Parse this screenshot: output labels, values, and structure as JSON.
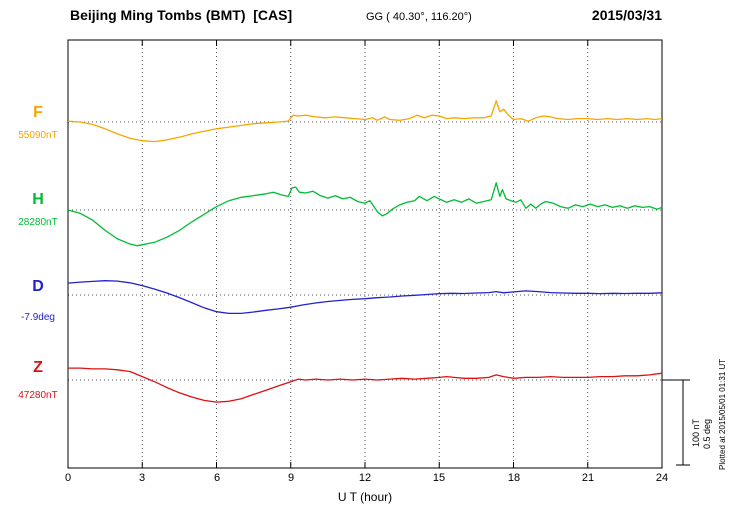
{
  "header": {
    "station": "Beijing Ming Tombs (BMT)  [CAS]",
    "coordinates": "GG ( 40.30°, 116.20°)",
    "date": "2015/03/31"
  },
  "axis": {
    "ticks": [
      "0",
      "3",
      "6",
      "9",
      "12",
      "15",
      "18",
      "21",
      "24"
    ],
    "xlabel": "U T (hour)"
  },
  "scale_bar": {
    "label_nt": "100 nT",
    "label_deg": "0.5 deg"
  },
  "footer_note": "Plotted at 2015/05/01 01:31 UT",
  "channels": [
    {
      "label": "F",
      "baseline_label": "55090nT",
      "color": "#F7A600",
      "unit": "nT"
    },
    {
      "label": "H",
      "baseline_label": "28280nT",
      "color": "#00BB33",
      "unit": "nT"
    },
    {
      "label": "D",
      "baseline_label": "-7.9deg",
      "color": "#2222CC",
      "unit": "deg"
    },
    {
      "label": "Z",
      "baseline_label": "47280nT",
      "color": "#DD1111",
      "unit": "nT"
    }
  ],
  "chart_data": {
    "type": "line",
    "title": "Beijing Ming Tombs (BMT) [CAS] magnetogram 2015/03/31",
    "xlabel": "U T (hour)",
    "x_range": [
      0,
      24
    ],
    "x_ticks": [
      0,
      3,
      6,
      9,
      12,
      15,
      18,
      21,
      24
    ],
    "grid": "dotted vertical lines every 3 h; dotted horizontal baseline per channel",
    "legend_position": "left margin channel labels",
    "scale": {
      "bar_nT": 100,
      "bar_deg": 0.5
    },
    "values_are": "offset from channel baseline (nT, or deg for D)",
    "series": [
      {
        "name": "F",
        "baseline": 55090,
        "unit": "nT",
        "color": "#F7A600",
        "points": [
          [
            0,
            1
          ],
          [
            0.5,
            0
          ],
          [
            1,
            -3
          ],
          [
            1.5,
            -8
          ],
          [
            2,
            -14
          ],
          [
            2.5,
            -19
          ],
          [
            3,
            -22
          ],
          [
            3.5,
            -23
          ],
          [
            4,
            -21
          ],
          [
            4.5,
            -18
          ],
          [
            5,
            -14
          ],
          [
            5.5,
            -11
          ],
          [
            6,
            -8
          ],
          [
            6.5,
            -6
          ],
          [
            7,
            -4
          ],
          [
            7.5,
            -2
          ],
          [
            8,
            -1
          ],
          [
            8.5,
            0
          ],
          [
            8.9,
            1
          ],
          [
            9.1,
            8
          ],
          [
            9.3,
            7
          ],
          [
            9.6,
            8
          ],
          [
            10,
            6
          ],
          [
            10.4,
            5
          ],
          [
            10.8,
            6
          ],
          [
            11.2,
            5
          ],
          [
            11.6,
            4
          ],
          [
            12,
            3
          ],
          [
            12.3,
            5
          ],
          [
            12.5,
            2
          ],
          [
            12.8,
            6
          ],
          [
            13,
            3
          ],
          [
            13.4,
            2
          ],
          [
            13.8,
            4
          ],
          [
            14.1,
            8
          ],
          [
            14.4,
            5
          ],
          [
            14.7,
            8
          ],
          [
            15,
            7
          ],
          [
            15.3,
            4
          ],
          [
            15.6,
            5
          ],
          [
            16,
            4
          ],
          [
            16.4,
            5
          ],
          [
            16.8,
            5
          ],
          [
            17.1,
            7
          ],
          [
            17.3,
            25
          ],
          [
            17.45,
            12
          ],
          [
            17.6,
            15
          ],
          [
            17.8,
            8
          ],
          [
            18,
            3
          ],
          [
            18.3,
            4
          ],
          [
            18.6,
            1
          ],
          [
            18.9,
            5
          ],
          [
            19.2,
            7
          ],
          [
            19.5,
            6
          ],
          [
            19.8,
            4
          ],
          [
            20.2,
            3
          ],
          [
            20.6,
            4
          ],
          [
            21,
            4
          ],
          [
            21.4,
            3
          ],
          [
            21.8,
            4
          ],
          [
            22.2,
            3
          ],
          [
            22.6,
            4
          ],
          [
            23,
            3
          ],
          [
            23.4,
            4
          ],
          [
            23.7,
            3
          ],
          [
            24,
            4
          ]
        ]
      },
      {
        "name": "H",
        "baseline": 28280,
        "unit": "nT",
        "color": "#00BB33",
        "points": [
          [
            0,
            0
          ],
          [
            0.5,
            -4
          ],
          [
            1,
            -12
          ],
          [
            1.5,
            -24
          ],
          [
            2,
            -34
          ],
          [
            2.5,
            -40
          ],
          [
            2.8,
            -42
          ],
          [
            3,
            -41
          ],
          [
            3.5,
            -38
          ],
          [
            4,
            -32
          ],
          [
            4.5,
            -24
          ],
          [
            5,
            -14
          ],
          [
            5.5,
            -5
          ],
          [
            6,
            4
          ],
          [
            6.5,
            11
          ],
          [
            7,
            15
          ],
          [
            7.5,
            17
          ],
          [
            8,
            19
          ],
          [
            8.3,
            21
          ],
          [
            8.6,
            18
          ],
          [
            8.9,
            16
          ],
          [
            9.05,
            26
          ],
          [
            9.2,
            27
          ],
          [
            9.35,
            21
          ],
          [
            9.6,
            20
          ],
          [
            9.9,
            22
          ],
          [
            10.2,
            17
          ],
          [
            10.5,
            14
          ],
          [
            10.8,
            17
          ],
          [
            11.1,
            13
          ],
          [
            11.4,
            15
          ],
          [
            11.7,
            10
          ],
          [
            12,
            8
          ],
          [
            12.2,
            11
          ],
          [
            12.5,
            -2
          ],
          [
            12.7,
            -7
          ],
          [
            12.9,
            -4
          ],
          [
            13.1,
            1
          ],
          [
            13.4,
            6
          ],
          [
            13.7,
            9
          ],
          [
            14,
            11
          ],
          [
            14.2,
            16
          ],
          [
            14.5,
            11
          ],
          [
            14.8,
            16
          ],
          [
            15,
            13
          ],
          [
            15.3,
            9
          ],
          [
            15.6,
            12
          ],
          [
            15.9,
            9
          ],
          [
            16.2,
            13
          ],
          [
            16.5,
            8
          ],
          [
            16.8,
            10
          ],
          [
            17.1,
            12
          ],
          [
            17.3,
            32
          ],
          [
            17.45,
            16
          ],
          [
            17.55,
            24
          ],
          [
            17.7,
            13
          ],
          [
            17.9,
            11
          ],
          [
            18.1,
            9
          ],
          [
            18.3,
            12
          ],
          [
            18.5,
            2
          ],
          [
            18.7,
            7
          ],
          [
            18.9,
            2
          ],
          [
            19.1,
            7
          ],
          [
            19.3,
            10
          ],
          [
            19.6,
            8
          ],
          [
            19.9,
            4
          ],
          [
            20.2,
            2
          ],
          [
            20.5,
            6
          ],
          [
            20.8,
            4
          ],
          [
            21.1,
            7
          ],
          [
            21.4,
            4
          ],
          [
            21.7,
            6
          ],
          [
            22,
            3
          ],
          [
            22.3,
            5
          ],
          [
            22.6,
            2
          ],
          [
            22.9,
            5
          ],
          [
            23.2,
            3
          ],
          [
            23.5,
            4
          ],
          [
            23.8,
            1
          ],
          [
            24,
            3
          ]
        ]
      },
      {
        "name": "D",
        "baseline": -7.9,
        "unit": "deg",
        "color": "#2222CC",
        "points": [
          [
            0,
            0.07
          ],
          [
            0.5,
            0.076
          ],
          [
            1,
            0.08
          ],
          [
            1.5,
            0.084
          ],
          [
            2,
            0.082
          ],
          [
            2.5,
            0.072
          ],
          [
            3,
            0.055
          ],
          [
            3.5,
            0.035
          ],
          [
            4,
            0.012
          ],
          [
            4.5,
            -0.015
          ],
          [
            5,
            -0.045
          ],
          [
            5.5,
            -0.075
          ],
          [
            6,
            -0.098
          ],
          [
            6.5,
            -0.108
          ],
          [
            7,
            -0.108
          ],
          [
            7.5,
            -0.1
          ],
          [
            8,
            -0.09
          ],
          [
            8.5,
            -0.082
          ],
          [
            9,
            -0.072
          ],
          [
            9.5,
            -0.058
          ],
          [
            10,
            -0.047
          ],
          [
            10.5,
            -0.038
          ],
          [
            11,
            -0.032
          ],
          [
            11.5,
            -0.026
          ],
          [
            12,
            -0.022
          ],
          [
            12.5,
            -0.016
          ],
          [
            13,
            -0.012
          ],
          [
            13.5,
            -0.006
          ],
          [
            14,
            -0.002
          ],
          [
            14.5,
            0.003
          ],
          [
            15,
            0.008
          ],
          [
            15.5,
            0.01
          ],
          [
            16,
            0.009
          ],
          [
            16.5,
            0.012
          ],
          [
            17,
            0.014
          ],
          [
            17.3,
            0.02
          ],
          [
            17.6,
            0.013
          ],
          [
            18,
            0.018
          ],
          [
            18.5,
            0.024
          ],
          [
            19,
            0.02
          ],
          [
            19.5,
            0.014
          ],
          [
            20,
            0.012
          ],
          [
            20.5,
            0.01
          ],
          [
            21,
            0.01
          ],
          [
            21.5,
            0.008
          ],
          [
            22,
            0.01
          ],
          [
            22.5,
            0.009
          ],
          [
            23,
            0.01
          ],
          [
            23.5,
            0.01
          ],
          [
            24,
            0.013
          ]
        ]
      },
      {
        "name": "Z",
        "baseline": 47280,
        "unit": "nT",
        "color": "#DD1111",
        "points": [
          [
            0,
            14
          ],
          [
            0.5,
            14
          ],
          [
            1,
            13
          ],
          [
            1.5,
            13
          ],
          [
            2,
            12
          ],
          [
            2.5,
            10
          ],
          [
            3,
            4
          ],
          [
            3.5,
            -2
          ],
          [
            4,
            -9
          ],
          [
            4.5,
            -15
          ],
          [
            5,
            -20
          ],
          [
            5.5,
            -24
          ],
          [
            6,
            -26
          ],
          [
            6.5,
            -25
          ],
          [
            7,
            -22
          ],
          [
            7.5,
            -17
          ],
          [
            8,
            -12
          ],
          [
            8.5,
            -7
          ],
          [
            9,
            -2
          ],
          [
            9.3,
            1
          ],
          [
            9.6,
            0
          ],
          [
            10,
            1
          ],
          [
            10.5,
            0
          ],
          [
            11,
            1
          ],
          [
            11.5,
            0
          ],
          [
            12,
            1
          ],
          [
            12.5,
            0
          ],
          [
            13,
            1
          ],
          [
            13.5,
            2
          ],
          [
            14,
            1
          ],
          [
            14.5,
            2
          ],
          [
            15,
            3
          ],
          [
            15.3,
            4
          ],
          [
            15.6,
            3
          ],
          [
            16,
            2
          ],
          [
            16.5,
            2
          ],
          [
            17,
            3
          ],
          [
            17.3,
            6
          ],
          [
            17.6,
            4
          ],
          [
            18,
            2
          ],
          [
            18.5,
            3
          ],
          [
            19,
            3
          ],
          [
            19.5,
            4
          ],
          [
            20,
            3
          ],
          [
            20.5,
            3
          ],
          [
            21,
            3
          ],
          [
            21.5,
            4
          ],
          [
            22,
            4
          ],
          [
            22.5,
            5
          ],
          [
            23,
            5
          ],
          [
            23.5,
            6
          ],
          [
            24,
            8
          ]
        ]
      }
    ]
  }
}
